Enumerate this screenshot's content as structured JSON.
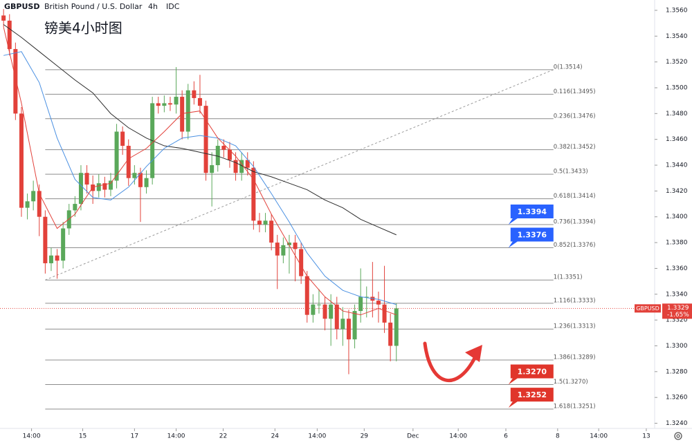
{
  "chart_data": {
    "type": "candlestick",
    "symbol": "GBPUSD",
    "description": "British Pound / U.S. Dollar",
    "interval": "4h",
    "source": "IDC",
    "title": "镑美4小时图",
    "up_color": "#5aa85a",
    "down_color": "#e2413a",
    "xlim": [
      -0.6,
      109.4
    ],
    "xticks": [
      {
        "value": 4.7,
        "label": "14:00"
      },
      {
        "value": 13.3,
        "label": "15"
      },
      {
        "value": 22,
        "label": "17"
      },
      {
        "value": 29,
        "label": "14:00"
      },
      {
        "value": 36.9,
        "label": "22"
      },
      {
        "value": 45.6,
        "label": "24"
      },
      {
        "value": 52.7,
        "label": "14:00"
      },
      {
        "value": 60.6,
        "label": "29"
      },
      {
        "value": 68.8,
        "label": "Dec"
      },
      {
        "value": 76.4,
        "label": "14:00"
      },
      {
        "value": 84.4,
        "label": "6"
      },
      {
        "value": 93.1,
        "label": "8"
      },
      {
        "value": 100,
        "label": "14:00"
      },
      {
        "value": 108,
        "label": "13"
      }
    ],
    "ylim": [
      1.3236,
      1.3568
    ],
    "yticks": [
      {
        "value": 1.324,
        "label": "1.3240"
      },
      {
        "value": 1.326,
        "label": "1.3260"
      },
      {
        "value": 1.328,
        "label": "1.3280"
      },
      {
        "value": 1.33,
        "label": "1.3300"
      },
      {
        "value": 1.332,
        "label": "1.3320"
      },
      {
        "value": 1.334,
        "label": "1.3340"
      },
      {
        "value": 1.336,
        "label": "1.3360"
      },
      {
        "value": 1.338,
        "label": "1.3380"
      },
      {
        "value": 1.34,
        "label": "1.3400"
      },
      {
        "value": 1.342,
        "label": "1.3420"
      },
      {
        "value": 1.344,
        "label": "1.3440"
      },
      {
        "value": 1.346,
        "label": "1.3460"
      },
      {
        "value": 1.348,
        "label": "1.3480"
      },
      {
        "value": 1.35,
        "label": "1.3500"
      },
      {
        "value": 1.352,
        "label": "1.3520"
      },
      {
        "value": 1.354,
        "label": "1.3540"
      },
      {
        "value": 1.356,
        "label": "1.3560"
      }
    ],
    "open": [
      1.3556,
      1.3552,
      1.353,
      1.348,
      1.3407,
      1.3412,
      1.342,
      1.34,
      1.3364,
      1.337,
      1.3366,
      1.3391,
      1.3405,
      1.341,
      1.3434,
      1.3425,
      1.342,
      1.3426,
      1.3421,
      1.3428,
      1.3466,
      1.3455,
      1.343,
      1.3434,
      1.3423,
      1.343,
      1.3488,
      1.3486,
      1.3488,
      1.3487,
      1.3493,
      1.3466,
      1.3498,
      1.3492,
      1.3486,
      1.3434,
      1.344,
      1.3455,
      1.3452,
      1.3444,
      1.3434,
      1.3444,
      1.3438,
      1.3397,
      1.3394,
      1.3397,
      1.338,
      1.337,
      1.3378,
      1.338,
      1.3375,
      1.3354,
      1.3324,
      1.3332,
      1.3332,
      1.3321,
      1.3332,
      1.3313,
      1.3321,
      1.3305,
      1.3327,
      1.3338,
      1.3338,
      1.3335,
      1.3332,
      1.3318,
      1.33
    ],
    "high": [
      1.3561,
      1.3557,
      1.3535,
      1.3485,
      1.3418,
      1.3428,
      1.3425,
      1.3405,
      1.3376,
      1.3375,
      1.3396,
      1.341,
      1.3416,
      1.344,
      1.344,
      1.3432,
      1.3433,
      1.3431,
      1.3434,
      1.3472,
      1.347,
      1.346,
      1.344,
      1.3438,
      1.3436,
      1.3493,
      1.3493,
      1.3494,
      1.3493,
      1.3516,
      1.3498,
      1.3503,
      1.3505,
      1.351,
      1.349,
      1.345,
      1.346,
      1.346,
      1.3458,
      1.345,
      1.345,
      1.345,
      1.3443,
      1.3403,
      1.3403,
      1.3402,
      1.3386,
      1.3384,
      1.3386,
      1.3386,
      1.338,
      1.3358,
      1.334,
      1.3344,
      1.3338,
      1.334,
      1.3338,
      1.333,
      1.3328,
      1.3332,
      1.336,
      1.3346,
      1.3365,
      1.3342,
      1.3362,
      1.3325,
      1.3333
    ],
    "low": [
      1.3547,
      1.3525,
      1.3475,
      1.34,
      1.3398,
      1.3405,
      1.3385,
      1.3356,
      1.3358,
      1.3352,
      1.336,
      1.3386,
      1.34,
      1.3405,
      1.3418,
      1.341,
      1.3415,
      1.3415,
      1.3416,
      1.3422,
      1.3448,
      1.3424,
      1.3425,
      1.3396,
      1.3418,
      1.3425,
      1.348,
      1.3481,
      1.3482,
      1.348,
      1.346,
      1.346,
      1.3487,
      1.348,
      1.3428,
      1.3408,
      1.3435,
      1.3446,
      1.3438,
      1.3428,
      1.3428,
      1.3432,
      1.339,
      1.3388,
      1.3388,
      1.3374,
      1.3344,
      1.3364,
      1.3356,
      1.335,
      1.3348,
      1.3318,
      1.3318,
      1.3325,
      1.3312,
      1.33,
      1.3305,
      1.33,
      1.3278,
      1.3298,
      1.3318,
      1.3322,
      1.3322,
      1.3318,
      1.331,
      1.3288,
      1.3288
    ],
    "close": [
      1.3552,
      1.353,
      1.348,
      1.3407,
      1.3412,
      1.342,
      1.34,
      1.3364,
      1.337,
      1.3366,
      1.3391,
      1.3405,
      1.341,
      1.3434,
      1.3425,
      1.342,
      1.3426,
      1.3421,
      1.3428,
      1.3466,
      1.3455,
      1.343,
      1.3434,
      1.3423,
      1.343,
      1.3488,
      1.3486,
      1.3488,
      1.3487,
      1.3493,
      1.3466,
      1.3498,
      1.3492,
      1.3486,
      1.3434,
      1.344,
      1.3455,
      1.3452,
      1.3444,
      1.3434,
      1.3444,
      1.3438,
      1.3397,
      1.3394,
      1.3397,
      1.338,
      1.337,
      1.3378,
      1.338,
      1.3375,
      1.3354,
      1.3324,
      1.3332,
      1.3332,
      1.3321,
      1.3332,
      1.3313,
      1.3321,
      1.3305,
      1.3327,
      1.3338,
      1.3338,
      1.3335,
      1.3332,
      1.3318,
      1.33,
      1.3329
    ],
    "series": [
      {
        "color": "#2b2b2b",
        "x": [
          0,
          3,
          6,
          9,
          12,
          15,
          18,
          21,
          24,
          27,
          30,
          33,
          36,
          39,
          42,
          45,
          48,
          51,
          54,
          57,
          60,
          63,
          66
        ],
        "values": [
          1.3549,
          1.3539,
          1.3528,
          1.3517,
          1.3506,
          1.3496,
          1.348,
          1.3469,
          1.3461,
          1.3455,
          1.3453,
          1.345,
          1.3447,
          1.3442,
          1.3435,
          1.3431,
          1.3426,
          1.3421,
          1.3413,
          1.3407,
          1.3398,
          1.3392,
          1.3386
        ]
      },
      {
        "color": "#4a90e2",
        "x": [
          0,
          3,
          6,
          9,
          12,
          15,
          18,
          21,
          24,
          27,
          30,
          33,
          36,
          39,
          42,
          45,
          48,
          51,
          54,
          57,
          60,
          63,
          66
        ],
        "values": [
          1.3525,
          1.3528,
          1.3504,
          1.3461,
          1.3429,
          1.3415,
          1.3413,
          1.3423,
          1.3439,
          1.3453,
          1.3461,
          1.3463,
          1.3461,
          1.3455,
          1.3439,
          1.3418,
          1.3396,
          1.3372,
          1.3354,
          1.3343,
          1.3338,
          1.3336,
          1.3332
        ]
      },
      {
        "color": "#e2413a",
        "x": [
          0,
          3,
          6,
          9,
          12,
          15,
          18,
          21,
          24,
          27,
          30,
          33,
          36,
          39,
          42,
          45,
          48,
          51,
          54,
          57,
          60,
          63,
          66
        ],
        "values": [
          1.3547,
          1.3488,
          1.3418,
          1.3391,
          1.3402,
          1.3423,
          1.3426,
          1.3445,
          1.3453,
          1.3466,
          1.348,
          1.3482,
          1.3461,
          1.3447,
          1.3429,
          1.3402,
          1.3378,
          1.3354,
          1.3338,
          1.3327,
          1.3324,
          1.3329,
          1.3324
        ]
      }
    ],
    "fib_x": [
      7,
      92.4
    ],
    "fib_levels": [
      {
        "value": 1.3514,
        "label": "0(1.3514)"
      },
      {
        "value": 1.3495,
        "label": "0.116(1.3495)"
      },
      {
        "value": 1.3476,
        "label": "0.236(1.3476)"
      },
      {
        "value": 1.3452,
        "label": "0.382(1.3452)"
      },
      {
        "value": 1.3433,
        "label": "0.5(1.3433)"
      },
      {
        "value": 1.3414,
        "label": "0.618(1.3414)"
      },
      {
        "value": 1.3394,
        "label": "0.736(1.3394)"
      },
      {
        "value": 1.3376,
        "label": "0.852(1.3376)"
      },
      {
        "value": 1.3351,
        "label": "1(1.3351)"
      },
      {
        "value": 1.3333,
        "label": "1.116(1.3333)"
      },
      {
        "value": 1.3313,
        "label": "1.236(1.3313)"
      },
      {
        "value": 1.3289,
        "label": "1.386(1.3289)"
      },
      {
        "value": 1.327,
        "label": "1.5(1.3270)"
      },
      {
        "value": 1.3251,
        "label": "1.618(1.3251)"
      }
    ],
    "trendline": {
      "x": [
        7,
        92.4
      ],
      "y": [
        1.3351,
        1.3514
      ]
    },
    "price_boxes": [
      {
        "value": 1.3394,
        "label": "1.3394",
        "color": "#2962ff"
      },
      {
        "value": 1.3376,
        "label": "1.3376",
        "color": "#2962ff"
      },
      {
        "value": 1.327,
        "label": "1.3270",
        "color": "#e0352b"
      },
      {
        "value": 1.3252,
        "label": "1.3252",
        "color": "#e0352b"
      }
    ],
    "last_price": {
      "value": 1.3329,
      "label": "1.3329",
      "change": "-1.65%",
      "color": "#e2413a"
    }
  }
}
